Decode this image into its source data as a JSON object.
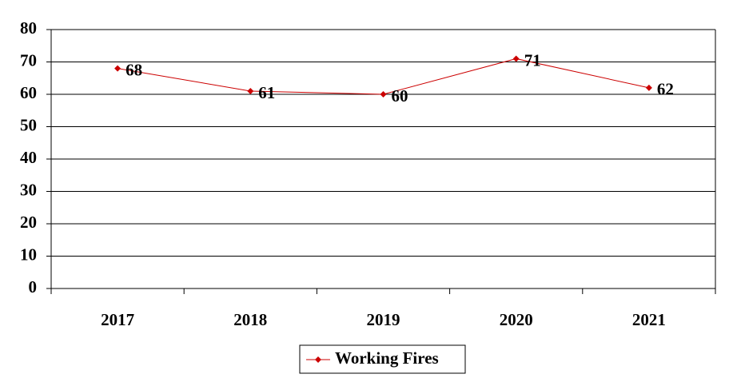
{
  "chart_data": {
    "type": "line",
    "categories": [
      "2017",
      "2018",
      "2019",
      "2020",
      "2021"
    ],
    "series": [
      {
        "name": "Working Fires",
        "color": "#cc0000",
        "values": [
          68,
          61,
          60,
          71,
          62
        ]
      }
    ],
    "ylim": [
      0,
      80
    ],
    "yticks": [
      0,
      10,
      20,
      30,
      40,
      50,
      60,
      70,
      80
    ],
    "grid": true,
    "legend": "bottom"
  }
}
